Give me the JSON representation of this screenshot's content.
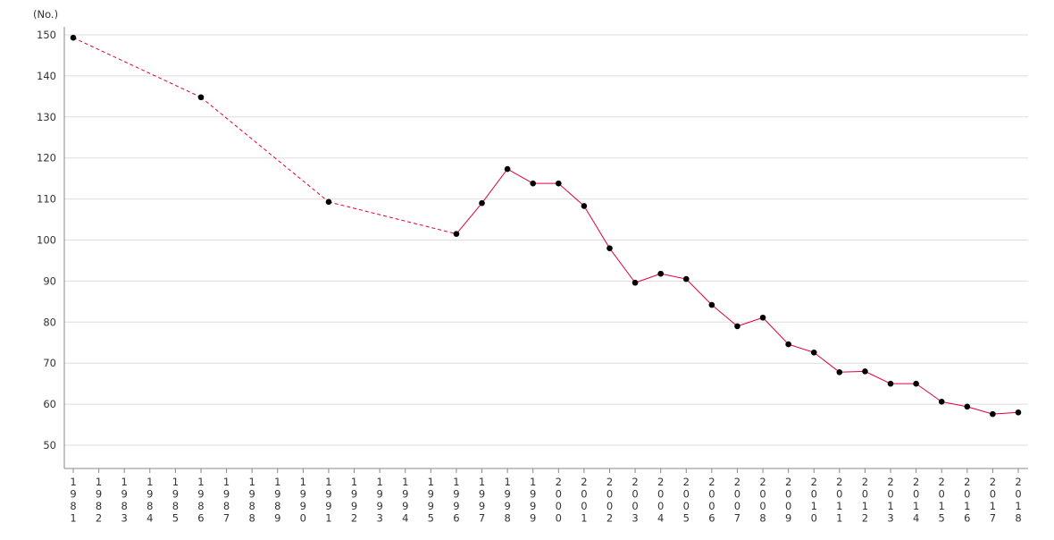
{
  "chart_data": {
    "type": "line",
    "ylabel": "(No.)",
    "ylim": [
      45,
      150
    ],
    "yticks": [
      50,
      60,
      70,
      80,
      90,
      100,
      110,
      120,
      130,
      140,
      150
    ],
    "x": [
      "1981",
      "1982",
      "1983",
      "1984",
      "1985",
      "1986",
      "1987",
      "1988",
      "1989",
      "1990",
      "1991",
      "1992",
      "1993",
      "1994",
      "1995",
      "1996",
      "1997",
      "1998",
      "1999",
      "2000",
      "2001",
      "2002",
      "2003",
      "2004",
      "2005",
      "2006",
      "2007",
      "2008",
      "2009",
      "2010",
      "2011",
      "2012",
      "2013",
      "2014",
      "2015",
      "2016",
      "2017",
      "2018"
    ],
    "grid": true,
    "series": [
      {
        "color": "#e0003c",
        "points": [
          {
            "x": "1981",
            "y": 149.3
          },
          {
            "x": "1986",
            "y": 134.8
          },
          {
            "x": "1991",
            "y": 109.3
          },
          {
            "x": "1996",
            "y": 101.5
          },
          {
            "x": "1997",
            "y": 109.0
          },
          {
            "x": "1998",
            "y": 117.3
          },
          {
            "x": "1999",
            "y": 113.8
          },
          {
            "x": "2000",
            "y": 113.8
          },
          {
            "x": "2001",
            "y": 108.3
          },
          {
            "x": "2002",
            "y": 98.0
          },
          {
            "x": "2003",
            "y": 89.6
          },
          {
            "x": "2004",
            "y": 91.8
          },
          {
            "x": "2005",
            "y": 90.5
          },
          {
            "x": "2006",
            "y": 84.2
          },
          {
            "x": "2007",
            "y": 79.0
          },
          {
            "x": "2008",
            "y": 81.1
          },
          {
            "x": "2009",
            "y": 74.6
          },
          {
            "x": "2010",
            "y": 72.6
          },
          {
            "x": "2011",
            "y": 67.8
          },
          {
            "x": "2012",
            "y": 68.0
          },
          {
            "x": "2013",
            "y": 65.0
          },
          {
            "x": "2014",
            "y": 65.0
          },
          {
            "x": "2015",
            "y": 60.6
          },
          {
            "x": "2016",
            "y": 59.4
          },
          {
            "x": "2017",
            "y": 57.6
          },
          {
            "x": "2018",
            "y": 58.0
          }
        ]
      }
    ]
  }
}
